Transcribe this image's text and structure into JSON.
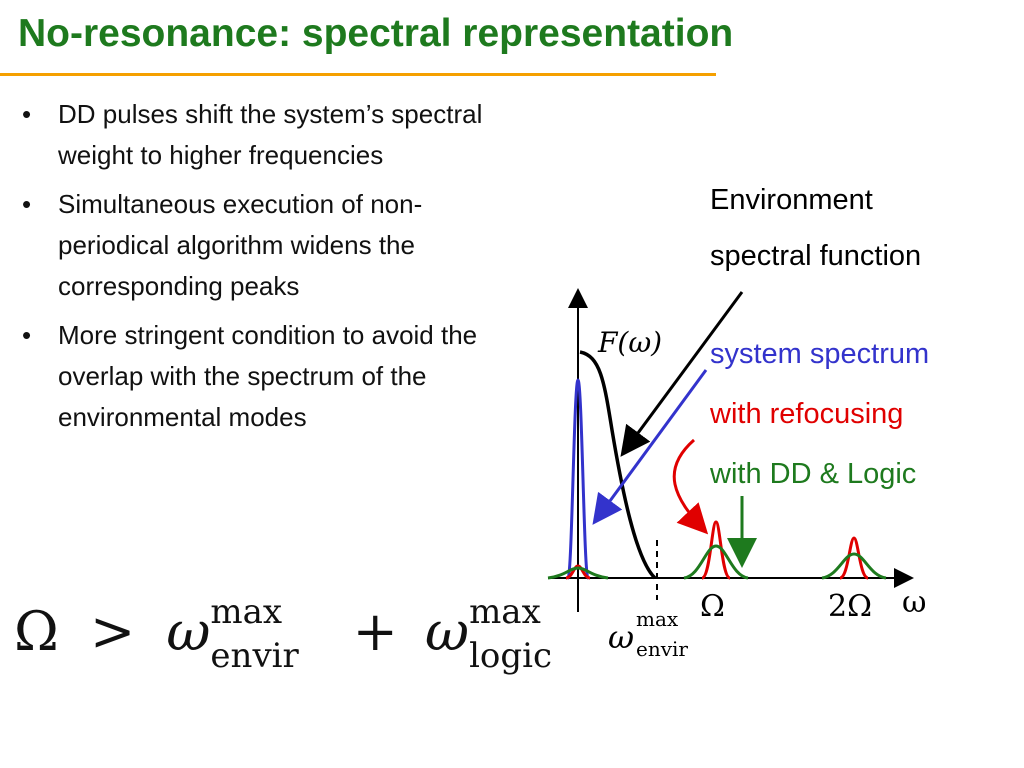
{
  "slide": {
    "title": "No-resonance: spectral representation",
    "bullets": [
      "DD pulses shift the system’s spectral weight to higher frequencies",
      "Simultaneous execution of non-periodical algorithm widens the corresponding peaks",
      "More stringent condition to avoid the overlap with the spectrum of the environmental modes"
    ],
    "bullet_glyph": "•",
    "formula": {
      "lhs": "Ω",
      "op": ">",
      "omega": "ω",
      "plus": "+",
      "term1_sup": "max",
      "term1_sub": "envir",
      "term2_sup": "max",
      "term2_sub": "logic"
    }
  },
  "diagram": {
    "env_label_line1": "Environment",
    "env_label_line2": "spectral function",
    "system_label": "system spectrum",
    "refocus_label": "with refocusing",
    "ddlogic_label": "with DD & Logic",
    "f_label": "F(ω)",
    "omega_axis": "ω",
    "tick_omega": "Ω",
    "tick_2omega": "2Ω",
    "envir_max_omega": "ω",
    "envir_max_sup": "max",
    "envir_max_sub": "envir",
    "colors": {
      "title_green": "#1e7a1e",
      "rule_orange": "#f5a000",
      "blue": "#3333cc",
      "red": "#e00000",
      "green": "#1e7a1e",
      "black": "#000000"
    }
  }
}
